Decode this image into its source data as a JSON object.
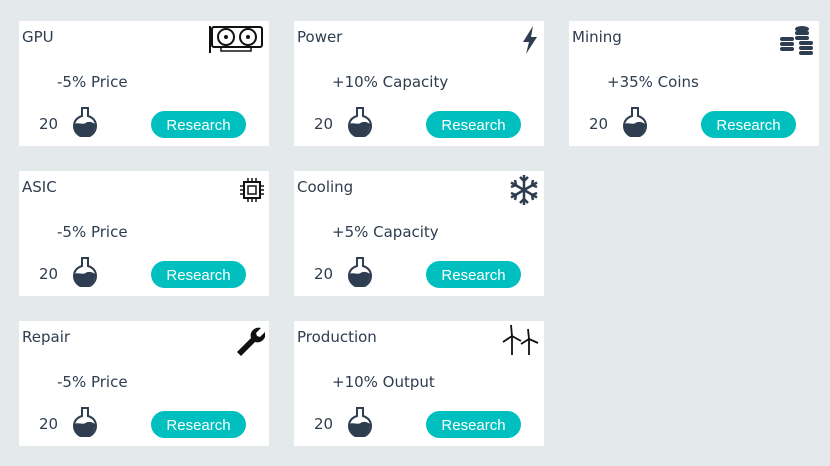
{
  "colors": {
    "accent": "#00bfbf",
    "text": "#2e3d4f",
    "background": "#e4e9ec"
  },
  "cards": [
    {
      "title": "GPU",
      "effect": "-5% Price",
      "cost": "20",
      "button": "Research",
      "icon": "gpu-icon"
    },
    {
      "title": "Power",
      "effect": "+10% Capacity",
      "cost": "20",
      "button": "Research",
      "icon": "lightning-icon"
    },
    {
      "title": "Mining",
      "effect": "+35% Coins",
      "cost": "20",
      "button": "Research",
      "icon": "coins-stack-icon"
    },
    {
      "title": "ASIC",
      "effect": "-5% Price",
      "cost": "20",
      "button": "Research",
      "icon": "chip-icon"
    },
    {
      "title": "Cooling",
      "effect": "+5% Capacity",
      "cost": "20",
      "button": "Research",
      "icon": "snowflake-icon"
    },
    {
      "title": "Repair",
      "effect": "-5% Price",
      "cost": "20",
      "button": "Research",
      "icon": "wrench-icon"
    },
    {
      "title": "Production",
      "effect": "+10% Output",
      "cost": "20",
      "button": "Research",
      "icon": "wind-turbine-icon"
    }
  ]
}
